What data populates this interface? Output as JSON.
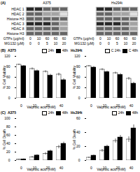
{
  "chart_data": [
    {
      "type": "heatmap",
      "annotations": [
        "(A)"
      ],
      "rows": [
        "HDAC 1",
        "HDAC 2",
        "Histone H3",
        "HDAC 3",
        "HDAC 8",
        "Histone H3"
      ],
      "column_label_rows": [
        {
          "name": "GTPs (μg/ml)",
          "labels": [
            "0",
            "10",
            "60",
            "60",
            "60"
          ]
        },
        {
          "name": "MG132 (μM)",
          "labels": [
            "0",
            "0",
            "5",
            "10",
            "20"
          ]
        }
      ],
      "zlim": [
        0,
        3
      ],
      "series": [
        {
          "name": "A375",
          "values": [
            [
              3,
              3,
              2,
              2,
              2
            ],
            [
              2,
              2,
              1,
              1,
              0
            ],
            [
              2,
              2,
              2,
              2,
              2
            ],
            [
              3,
              3,
              3,
              2,
              1
            ],
            [
              2,
              2,
              2,
              2,
              1
            ],
            [
              2,
              2,
              2,
              2,
              2
            ]
          ]
        },
        {
          "name": "Hs294t",
          "values": [
            [
              3,
              3,
              2,
              2,
              2
            ],
            [
              2,
              2,
              1,
              1,
              0
            ],
            [
              2,
              2,
              2,
              2,
              2
            ],
            [
              3,
              3,
              3,
              2,
              1
            ],
            [
              2,
              2,
              2,
              2,
              1
            ],
            [
              2,
              2,
              2,
              2,
              2
            ]
          ]
        }
      ]
    },
    {
      "type": "bar",
      "title": "A375",
      "annotations": [
        "(B)"
      ],
      "categories": [
        "0",
        "10",
        "20",
        "40"
      ],
      "xlabel": "Valproic acid (mM)",
      "ylabel": "% Cell Viability",
      "ylim": [
        0,
        120
      ],
      "yticks": [
        0,
        30,
        60,
        90,
        120
      ],
      "legend": "upper right",
      "series": [
        {
          "name": "24h",
          "color": "#ffffff",
          "values": [
            96,
            84,
            76,
            68
          ],
          "errors": [
            2,
            3,
            3,
            4
          ]
        },
        {
          "name": "48h",
          "color": "#000000",
          "values": [
            92,
            78,
            65,
            52
          ],
          "errors": [
            2,
            3,
            4,
            4
          ]
        }
      ]
    },
    {
      "type": "bar",
      "title": "Hs294t",
      "categories": [
        "0",
        "10",
        "20",
        "40"
      ],
      "xlabel": "Valproic acid (mM)",
      "ylabel": "% Cell Viability",
      "ylim": [
        0,
        120
      ],
      "yticks": [
        0,
        30,
        60,
        90,
        120
      ],
      "legend": "upper right",
      "series": [
        {
          "name": "C 24h",
          "color": "#ffffff",
          "values": [
            92,
            82,
            72,
            56
          ],
          "errors": [
            2,
            3,
            3,
            4
          ]
        },
        {
          "name": "C 48h",
          "color": "#000000",
          "values": [
            88,
            75,
            67,
            42
          ],
          "errors": [
            3,
            3,
            4,
            4
          ]
        }
      ]
    },
    {
      "type": "bar",
      "title": "A375",
      "annotations": [
        "(C)"
      ],
      "categories": [
        "0",
        "10",
        "20",
        "40"
      ],
      "xlabel": "Valproic acid (mM)",
      "ylabel": "% Cell Death",
      "ylim": [
        0,
        100
      ],
      "yticks": [
        0,
        20,
        40,
        60,
        80,
        100
      ],
      "legend": "upper right",
      "series": [
        {
          "name": "24h",
          "color": "#ffffff",
          "values": [
            2,
            8,
            16,
            32
          ],
          "errors": [
            1,
            2,
            3,
            4
          ]
        },
        {
          "name": "48h",
          "color": "#000000",
          "values": [
            3,
            12,
            22,
            40
          ],
          "errors": [
            1,
            2,
            3,
            4
          ]
        }
      ]
    },
    {
      "type": "bar",
      "title": "Hs294t",
      "categories": [
        "0",
        "10",
        "20",
        "40"
      ],
      "xlabel": "Valproic acid (mM)",
      "ylabel": "% Cell Death",
      "ylim": [
        0,
        60
      ],
      "yticks": [
        0,
        20,
        40,
        60
      ],
      "legend": "upper right",
      "series": [
        {
          "name": "24h",
          "color": "#ffffff",
          "values": [
            4,
            14,
            28,
            30
          ],
          "errors": [
            1,
            2,
            3,
            4
          ]
        },
        {
          "name": "48h",
          "color": "#000000",
          "values": [
            7,
            20,
            33,
            46
          ],
          "errors": [
            1,
            2,
            3,
            5
          ]
        }
      ]
    }
  ]
}
